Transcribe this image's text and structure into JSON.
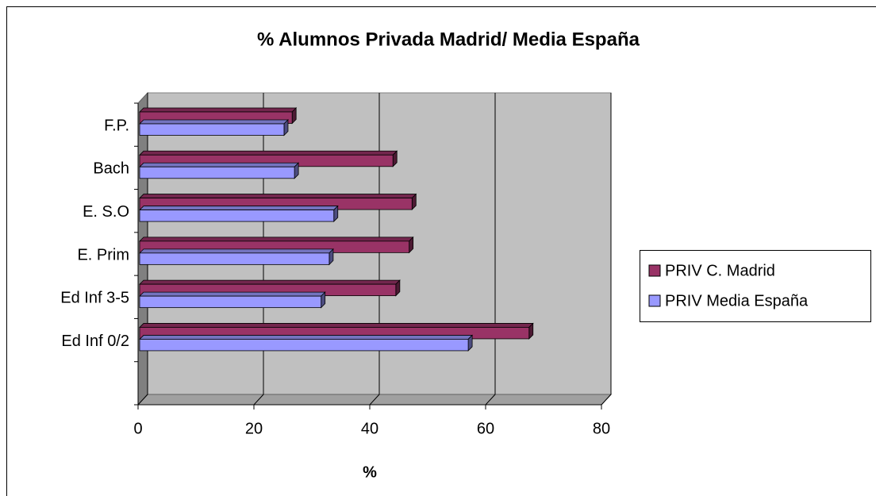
{
  "chart_data": {
    "type": "bar3d",
    "orientation": "horizontal",
    "title": "% Alumnos Privada Madrid/ Media España",
    "x_label": "%",
    "categories": [
      null,
      "Ed Inf 0/2",
      "Ed Inf 3-5",
      "E. Prim",
      "E. S.O",
      "Bach",
      "F.P."
    ],
    "series": [
      {
        "name": "PRIV C. Madrid",
        "color": "#993366",
        "values": [
          null,
          67.5,
          44.5,
          46.8,
          47.3,
          44,
          26.6
        ]
      },
      {
        "name": "PRIV Media España",
        "color": "#9999ff",
        "values": [
          null,
          57,
          31.6,
          33,
          33.8,
          27,
          25.2
        ]
      }
    ],
    "xlim": [
      0,
      80
    ],
    "xticks": [
      0,
      20,
      40,
      60,
      80
    ],
    "grid": true,
    "legend": "right"
  }
}
